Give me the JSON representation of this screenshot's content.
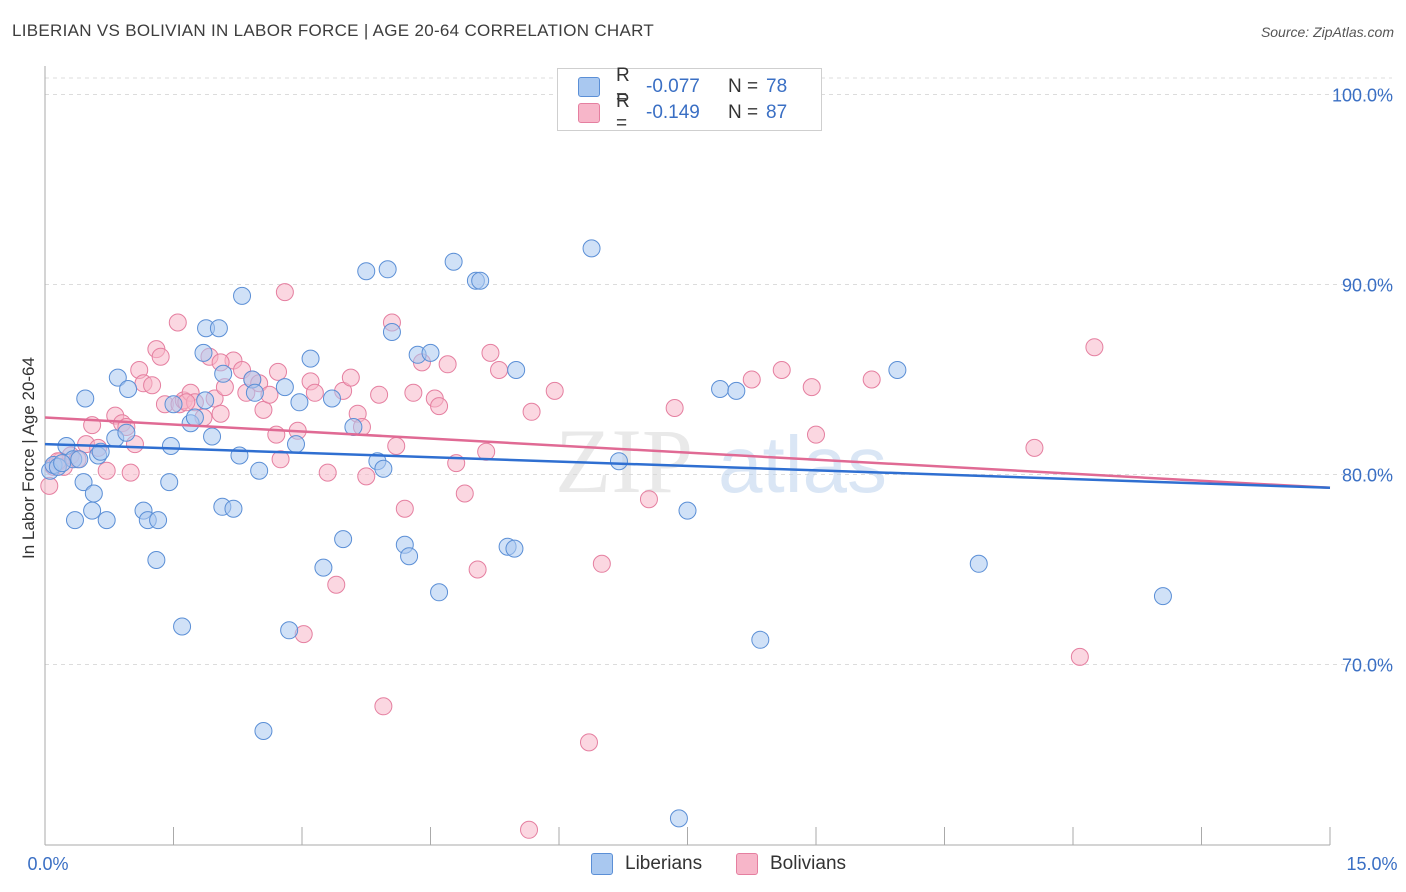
{
  "title": "LIBERIAN VS BOLIVIAN IN LABOR FORCE | AGE 20-64 CORRELATION CHART",
  "source": "Source: ZipAtlas.com",
  "watermark": {
    "zip": "ZIP",
    "atlas": "atlas"
  },
  "legend": {
    "rows": [
      {
        "r_label": "R =",
        "r_value": "-0.077",
        "n_label": "N =",
        "n_value": "78",
        "color": "#a9c8f0"
      },
      {
        "r_label": "R =",
        "r_value": "-0.149",
        "n_label": "N =",
        "n_value": "87",
        "color": "#f7b6c9"
      }
    ]
  },
  "bottom_legend": [
    {
      "label": "Liberians",
      "color": "#a9c8f0"
    },
    {
      "label": "Bolivians",
      "color": "#f7b6c9"
    }
  ],
  "colors": {
    "liberians_fill": "#a9c8f0",
    "liberians_stroke": "#5b8fd6",
    "liberians_line": "#2f6fd1",
    "bolivians_fill": "#f7b6c9",
    "bolivians_stroke": "#e57fa0",
    "bolivians_line": "#e06a94",
    "tick_label": "#3a6fc4",
    "grid": "#dcdcdc"
  },
  "chart_data": {
    "type": "scatter",
    "title": "LIBERIAN VS BOLIVIAN IN LABOR FORCE | AGE 20-64 CORRELATION CHART",
    "xlabel": "",
    "ylabel": "In Labor Force | Age 20-64",
    "xlim": [
      0,
      15
    ],
    "ylim": [
      60.5,
      101.5
    ],
    "x_tick_labels": [
      "0.0%",
      "15.0%"
    ],
    "y_ticks": [
      70,
      80,
      90,
      100
    ],
    "y_tick_labels": [
      "70.0%",
      "80.0%",
      "90.0%",
      "100.0%"
    ],
    "grid": true,
    "legend_position": "top-center",
    "series": [
      {
        "name": "Liberians",
        "r": -0.077,
        "n": 78,
        "trend": {
          "x": [
            0,
            15
          ],
          "y": [
            81.6,
            79.3
          ]
        },
        "points": [
          [
            0.06,
            80.2
          ],
          [
            0.1,
            80.5
          ],
          [
            0.15,
            80.4
          ],
          [
            0.25,
            81.5
          ],
          [
            0.33,
            80.8
          ],
          [
            0.4,
            80.8
          ],
          [
            0.45,
            79.6
          ],
          [
            0.47,
            84.0
          ],
          [
            0.55,
            78.1
          ],
          [
            0.57,
            79.0
          ],
          [
            0.62,
            81.0
          ],
          [
            0.72,
            77.6
          ],
          [
            0.82,
            81.9
          ],
          [
            0.85,
            85.1
          ],
          [
            0.95,
            82.2
          ],
          [
            0.97,
            84.5
          ],
          [
            1.15,
            78.1
          ],
          [
            1.2,
            77.6
          ],
          [
            1.32,
            77.6
          ],
          [
            1.47,
            81.5
          ],
          [
            1.5,
            83.7
          ],
          [
            1.6,
            72.0
          ],
          [
            1.7,
            82.7
          ],
          [
            1.75,
            83.0
          ],
          [
            1.85,
            86.4
          ],
          [
            1.87,
            83.9
          ],
          [
            1.88,
            87.7
          ],
          [
            2.03,
            87.7
          ],
          [
            2.07,
            78.3
          ],
          [
            2.2,
            78.2
          ],
          [
            2.27,
            81.0
          ],
          [
            2.3,
            89.4
          ],
          [
            2.42,
            85.0
          ],
          [
            2.45,
            84.3
          ],
          [
            2.5,
            80.2
          ],
          [
            2.55,
            66.5
          ],
          [
            2.8,
            84.6
          ],
          [
            2.85,
            71.8
          ],
          [
            2.93,
            81.6
          ],
          [
            2.97,
            83.8
          ],
          [
            3.1,
            86.1
          ],
          [
            3.25,
            75.1
          ],
          [
            3.35,
            84.0
          ],
          [
            3.48,
            76.6
          ],
          [
            3.6,
            82.5
          ],
          [
            3.75,
            90.7
          ],
          [
            3.88,
            80.7
          ],
          [
            3.95,
            80.3
          ],
          [
            4.0,
            90.8
          ],
          [
            4.05,
            87.5
          ],
          [
            4.2,
            76.3
          ],
          [
            4.25,
            75.7
          ],
          [
            4.35,
            86.3
          ],
          [
            4.5,
            86.4
          ],
          [
            4.6,
            73.8
          ],
          [
            4.77,
            91.2
          ],
          [
            5.03,
            90.2
          ],
          [
            5.08,
            90.2
          ],
          [
            5.4,
            76.2
          ],
          [
            5.48,
            76.1
          ],
          [
            5.5,
            85.5
          ],
          [
            6.38,
            91.9
          ],
          [
            6.7,
            80.7
          ],
          [
            7.4,
            61.9
          ],
          [
            7.5,
            78.1
          ],
          [
            7.88,
            84.5
          ],
          [
            8.07,
            84.4
          ],
          [
            8.35,
            71.3
          ],
          [
            9.95,
            85.5
          ],
          [
            10.9,
            75.3
          ],
          [
            13.05,
            73.6
          ],
          [
            1.3,
            75.5
          ],
          [
            1.95,
            82.0
          ],
          [
            0.35,
            77.6
          ],
          [
            2.08,
            85.3
          ],
          [
            0.2,
            80.6
          ],
          [
            1.45,
            79.6
          ],
          [
            0.65,
            81.2
          ]
        ]
      },
      {
        "name": "Bolivians",
        "r": -0.149,
        "n": 87,
        "trend": {
          "x": [
            0,
            15
          ],
          "y": [
            83.0,
            79.3
          ]
        },
        "points": [
          [
            0.05,
            79.4
          ],
          [
            0.1,
            80.4
          ],
          [
            0.18,
            80.7
          ],
          [
            0.22,
            80.4
          ],
          [
            0.3,
            81.0
          ],
          [
            0.38,
            80.8
          ],
          [
            0.48,
            81.6
          ],
          [
            0.55,
            82.6
          ],
          [
            0.62,
            81.4
          ],
          [
            0.72,
            80.2
          ],
          [
            0.82,
            83.1
          ],
          [
            0.9,
            82.7
          ],
          [
            0.95,
            82.5
          ],
          [
            1.05,
            81.6
          ],
          [
            1.1,
            85.5
          ],
          [
            1.15,
            84.8
          ],
          [
            1.25,
            84.7
          ],
          [
            1.3,
            86.6
          ],
          [
            1.35,
            86.2
          ],
          [
            1.4,
            83.7
          ],
          [
            1.55,
            88.0
          ],
          [
            1.57,
            83.7
          ],
          [
            1.62,
            83.9
          ],
          [
            1.7,
            84.3
          ],
          [
            1.75,
            83.8
          ],
          [
            1.85,
            83.0
          ],
          [
            1.92,
            86.2
          ],
          [
            1.98,
            84.0
          ],
          [
            2.05,
            83.2
          ],
          [
            2.1,
            84.6
          ],
          [
            2.2,
            86.0
          ],
          [
            2.3,
            85.5
          ],
          [
            2.35,
            84.3
          ],
          [
            2.42,
            85.0
          ],
          [
            2.5,
            84.8
          ],
          [
            2.55,
            83.4
          ],
          [
            2.62,
            84.2
          ],
          [
            2.7,
            82.1
          ],
          [
            2.72,
            85.4
          ],
          [
            2.75,
            80.8
          ],
          [
            2.8,
            89.6
          ],
          [
            2.95,
            82.3
          ],
          [
            3.02,
            71.6
          ],
          [
            3.1,
            84.9
          ],
          [
            3.15,
            84.3
          ],
          [
            3.3,
            80.1
          ],
          [
            3.4,
            74.2
          ],
          [
            3.48,
            84.4
          ],
          [
            3.57,
            85.1
          ],
          [
            3.65,
            83.2
          ],
          [
            3.7,
            82.5
          ],
          [
            3.75,
            79.9
          ],
          [
            3.9,
            84.2
          ],
          [
            3.95,
            67.8
          ],
          [
            4.05,
            88.0
          ],
          [
            4.1,
            81.5
          ],
          [
            4.2,
            78.2
          ],
          [
            4.3,
            84.3
          ],
          [
            4.4,
            85.9
          ],
          [
            4.55,
            84.0
          ],
          [
            4.6,
            83.6
          ],
          [
            4.7,
            85.8
          ],
          [
            4.8,
            80.6
          ],
          [
            4.9,
            79.0
          ],
          [
            5.05,
            75.0
          ],
          [
            5.15,
            81.2
          ],
          [
            5.2,
            86.4
          ],
          [
            5.3,
            85.5
          ],
          [
            5.65,
            61.3
          ],
          [
            5.68,
            83.3
          ],
          [
            5.95,
            84.4
          ],
          [
            6.35,
            65.9
          ],
          [
            6.5,
            75.3
          ],
          [
            7.05,
            78.7
          ],
          [
            7.35,
            83.5
          ],
          [
            8.25,
            85.0
          ],
          [
            8.6,
            85.5
          ],
          [
            8.95,
            84.6
          ],
          [
            9.0,
            82.1
          ],
          [
            9.65,
            85.0
          ],
          [
            11.55,
            81.4
          ],
          [
            12.08,
            70.4
          ],
          [
            12.25,
            86.7
          ],
          [
            1.0,
            80.1
          ],
          [
            0.15,
            80.7
          ],
          [
            2.05,
            85.9
          ],
          [
            1.65,
            83.8
          ]
        ]
      }
    ]
  }
}
